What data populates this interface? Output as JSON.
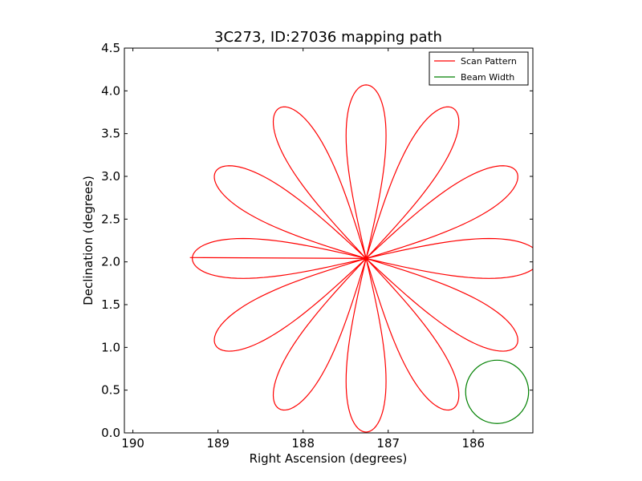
{
  "chart_data": {
    "type": "line",
    "title": "3C273, ID:27036 mapping path",
    "xlabel": "Right Ascension (degrees)",
    "ylabel": "Declination (degrees)",
    "xlim": [
      190.1,
      185.3
    ],
    "ylim": [
      0.0,
      4.5
    ],
    "xticks": [
      190,
      189,
      188,
      187,
      186
    ],
    "xtick_labels": [
      "190",
      "189",
      "188",
      "187",
      "186"
    ],
    "yticks": [
      0.0,
      0.5,
      1.0,
      1.5,
      2.0,
      2.5,
      3.0,
      3.5,
      4.0,
      4.5
    ],
    "ytick_labels": [
      "0.0",
      "0.5",
      "1.0",
      "1.5",
      "2.0",
      "2.5",
      "3.0",
      "3.5",
      "4.0",
      "4.5"
    ],
    "grid": false,
    "legend_placement": "top-right",
    "series": [
      {
        "name": "Scan Pattern",
        "color": "#ff0000",
        "kind": "rose-curve",
        "center": [
          187.26,
          2.04
        ],
        "radius": 2.03,
        "petals": 12,
        "petal_width": 0.46,
        "lead_in": [
          [
            189.33,
            2.05
          ],
          [
            189.28,
            2.05
          ]
        ]
      },
      {
        "name": "Beam Width",
        "color": "#008000",
        "kind": "circle",
        "center": [
          185.72,
          0.48
        ],
        "radius": 0.37
      }
    ]
  }
}
